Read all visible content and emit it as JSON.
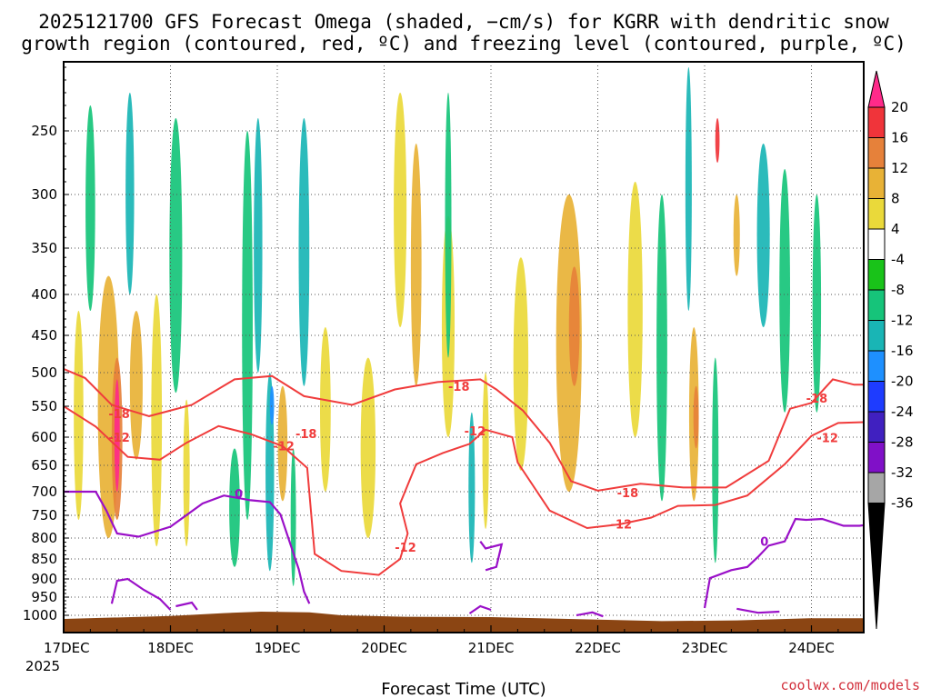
{
  "chart_data": {
    "type": "heatmap",
    "title_line1": "2025121700 GFS Forecast Omega (shaded, −cm/s) for KGRR with dendritic snow",
    "title_line2": "growth region (contoured, red, ºC) and freezing level (contoured, purple, ºC)",
    "xlabel": "Forecast Time (UTC)",
    "credit": "coolwx.com/models",
    "x_ticks": [
      "17DEC",
      "18DEC",
      "19DEC",
      "20DEC",
      "21DEC",
      "22DEC",
      "23DEC",
      "24DEC"
    ],
    "x_year": "2025",
    "xlim_days": [
      0,
      7.6
    ],
    "y_ticks": [
      "250",
      "300",
      "350",
      "400",
      "450",
      "500",
      "550",
      "600",
      "650",
      "700",
      "750",
      "800",
      "850",
      "900",
      "950",
      "1000"
    ],
    "y_tick_values": [
      250,
      300,
      350,
      400,
      450,
      500,
      550,
      600,
      650,
      700,
      750,
      800,
      850,
      900,
      950,
      1000
    ],
    "ylim_hpa": [
      200,
      1025
    ],
    "colorbar": {
      "labels": [
        "20",
        "16",
        "12",
        "8",
        "4",
        "-4",
        "-8",
        "-12",
        "-16",
        "-20",
        "-24",
        "-28",
        "-32",
        "-36"
      ],
      "colors": [
        "#ff2a8a",
        "#f0343a",
        "#e6813a",
        "#e8b236",
        "#ead93a",
        "#ffffff",
        "#19c319",
        "#16c47a",
        "#19b5b5",
        "#1e90ff",
        "#1e3cff",
        "#4020c0",
        "#8010c8",
        "#a6a6a6",
        "#000000"
      ]
    },
    "terrain_color": "#8b4513",
    "contour_labels": [
      {
        "text": "-18",
        "day": 0.52,
        "hpa": 562
      },
      {
        "text": "-12",
        "day": 0.52,
        "hpa": 600
      },
      {
        "text": "-18",
        "day": 2.27,
        "hpa": 594
      },
      {
        "text": "-12",
        "day": 2.06,
        "hpa": 615
      },
      {
        "text": "-12",
        "day": 3.2,
        "hpa": 822
      },
      {
        "text": "-18",
        "day": 3.7,
        "hpa": 520
      },
      {
        "text": "-12",
        "day": 3.85,
        "hpa": 590
      },
      {
        "text": "-18",
        "day": 5.28,
        "hpa": 702
      },
      {
        "text": "-12",
        "day": 5.22,
        "hpa": 769
      },
      {
        "text": "-18",
        "day": 7.05,
        "hpa": 538
      },
      {
        "text": "-12",
        "day": 7.15,
        "hpa": 601
      },
      {
        "text": "0",
        "day": 1.64,
        "hpa": 704
      },
      {
        "text": "0",
        "day": 6.56,
        "hpa": 808
      }
    ],
    "dgz_upper_minus18": [
      [
        0,
        495
      ],
      [
        0.2,
        508
      ],
      [
        0.45,
        548
      ],
      [
        0.8,
        566
      ],
      [
        1.2,
        548
      ],
      [
        1.6,
        510
      ],
      [
        1.95,
        505
      ],
      [
        2.25,
        535
      ],
      [
        2.7,
        548
      ],
      [
        3.1,
        525
      ],
      [
        3.5,
        514
      ],
      [
        3.9,
        510
      ],
      [
        4.05,
        525
      ],
      [
        4.3,
        557
      ],
      [
        4.55,
        610
      ],
      [
        4.75,
        680
      ],
      [
        5.0,
        698
      ],
      [
        5.4,
        685
      ],
      [
        5.8,
        692
      ],
      [
        6.2,
        692
      ],
      [
        6.6,
        642
      ],
      [
        6.8,
        554
      ],
      [
        7.0,
        545
      ],
      [
        7.2,
        510
      ],
      [
        7.4,
        518
      ],
      [
        7.6,
        518
      ]
    ],
    "dgz_lower_minus12": [
      [
        0,
        550
      ],
      [
        0.3,
        583
      ],
      [
        0.6,
        635
      ],
      [
        0.9,
        640
      ],
      [
        1.15,
        610
      ],
      [
        1.45,
        582
      ],
      [
        1.75,
        595
      ],
      [
        2.05,
        616
      ],
      [
        2.28,
        655
      ],
      [
        2.35,
        838
      ],
      [
        2.6,
        880
      ],
      [
        2.95,
        890
      ],
      [
        3.15,
        850
      ],
      [
        3.22,
        790
      ],
      [
        3.15,
        725
      ],
      [
        3.3,
        648
      ],
      [
        3.55,
        628
      ],
      [
        3.8,
        612
      ],
      [
        3.95,
        588
      ],
      [
        4.2,
        600
      ],
      [
        4.25,
        645
      ],
      [
        4.55,
        740
      ],
      [
        4.9,
        778
      ],
      [
        5.2,
        770
      ],
      [
        5.5,
        755
      ],
      [
        5.75,
        730
      ],
      [
        6.1,
        728
      ],
      [
        6.4,
        708
      ],
      [
        6.75,
        648
      ],
      [
        7.0,
        598
      ],
      [
        7.25,
        577
      ],
      [
        7.6,
        575
      ]
    ],
    "freezing_level_0c": [
      [
        [
          0.0,
          700
        ],
        [
          0.3,
          700
        ],
        [
          0.4,
          740
        ],
        [
          0.5,
          790
        ],
        [
          0.7,
          797
        ],
        [
          1.0,
          775
        ],
        [
          1.3,
          725
        ],
        [
          1.5,
          708
        ],
        [
          1.75,
          718
        ],
        [
          1.93,
          722
        ],
        [
          2.03,
          748
        ],
        [
          2.2,
          875
        ],
        [
          2.25,
          935
        ],
        [
          2.3,
          968
        ]
      ],
      [
        [
          0.45,
          968
        ],
        [
          0.5,
          905
        ],
        [
          0.6,
          900
        ],
        [
          0.75,
          930
        ],
        [
          0.9,
          955
        ],
        [
          1.0,
          985
        ]
      ],
      [
        [
          1.05,
          975
        ],
        [
          1.2,
          965
        ],
        [
          1.25,
          985
        ]
      ],
      [
        [
          3.8,
          995
        ],
        [
          3.9,
          975
        ],
        [
          4.0,
          985
        ]
      ],
      [
        [
          3.9,
          808
        ],
        [
          3.95,
          825
        ],
        [
          4.1,
          815
        ],
        [
          4.05,
          870
        ],
        [
          3.95,
          878
        ]
      ],
      [
        [
          4.8,
          1000
        ],
        [
          4.95,
          992
        ],
        [
          5.05,
          1003
        ]
      ],
      [
        [
          6.0,
          980
        ],
        [
          6.05,
          898
        ],
        [
          6.25,
          878
        ],
        [
          6.4,
          870
        ],
        [
          6.5,
          845
        ],
        [
          6.6,
          818
        ],
        [
          6.75,
          808
        ],
        [
          6.85,
          758
        ],
        [
          6.95,
          760
        ],
        [
          7.1,
          758
        ],
        [
          7.3,
          773
        ],
        [
          7.45,
          773
        ],
        [
          7.6,
          768
        ]
      ],
      [
        [
          6.3,
          982
        ],
        [
          6.5,
          993
        ],
        [
          6.7,
          990
        ]
      ]
    ],
    "shading_blobs": [
      {
        "day": 0.14,
        "hpa": 660,
        "width": 0.09,
        "top": 420,
        "bottom": 760,
        "value": 4
      },
      {
        "day": 0.42,
        "hpa": 560,
        "width": 0.2,
        "top": 380,
        "bottom": 800,
        "value": 8
      },
      {
        "day": 0.5,
        "hpa": 590,
        "width": 0.1,
        "top": 480,
        "bottom": 760,
        "value": 12
      },
      {
        "day": 0.5,
        "hpa": 600,
        "width": 0.05,
        "top": 510,
        "bottom": 700,
        "value": 20
      },
      {
        "day": 0.68,
        "hpa": 530,
        "width": 0.12,
        "top": 420,
        "bottom": 640,
        "value": 8
      },
      {
        "day": 0.87,
        "hpa": 560,
        "width": 0.1,
        "top": 400,
        "bottom": 820,
        "value": 4
      },
      {
        "day": 0.25,
        "hpa": 320,
        "width": 0.09,
        "top": 230,
        "bottom": 420,
        "value": -8
      },
      {
        "day": 0.62,
        "hpa": 300,
        "width": 0.08,
        "top": 220,
        "bottom": 400,
        "value": -12
      },
      {
        "day": 1.05,
        "hpa": 380,
        "width": 0.12,
        "top": 240,
        "bottom": 530,
        "value": -8
      },
      {
        "day": 1.15,
        "hpa": 700,
        "width": 0.06,
        "top": 540,
        "bottom": 820,
        "value": 4
      },
      {
        "day": 1.6,
        "hpa": 770,
        "width": 0.1,
        "top": 620,
        "bottom": 870,
        "value": -8
      },
      {
        "day": 1.72,
        "hpa": 500,
        "width": 0.1,
        "top": 250,
        "bottom": 760,
        "value": -8
      },
      {
        "day": 1.82,
        "hpa": 360,
        "width": 0.08,
        "top": 240,
        "bottom": 500,
        "value": -12
      },
      {
        "day": 1.93,
        "hpa": 720,
        "width": 0.08,
        "top": 500,
        "bottom": 880,
        "value": -12
      },
      {
        "day": 1.95,
        "hpa": 540,
        "width": 0.04,
        "top": 520,
        "bottom": 580,
        "value": -16
      },
      {
        "day": 2.05,
        "hpa": 560,
        "width": 0.09,
        "top": 520,
        "bottom": 720,
        "value": 8
      },
      {
        "day": 2.15,
        "hpa": 780,
        "width": 0.05,
        "top": 620,
        "bottom": 920,
        "value": -8
      },
      {
        "day": 2.25,
        "hpa": 360,
        "width": 0.1,
        "top": 240,
        "bottom": 520,
        "value": -12
      },
      {
        "day": 2.45,
        "hpa": 570,
        "width": 0.1,
        "top": 440,
        "bottom": 700,
        "value": 4
      },
      {
        "day": 2.85,
        "hpa": 620,
        "width": 0.14,
        "top": 480,
        "bottom": 800,
        "value": 4
      },
      {
        "day": 3.15,
        "hpa": 300,
        "width": 0.12,
        "top": 220,
        "bottom": 440,
        "value": 4
      },
      {
        "day": 3.3,
        "hpa": 340,
        "width": 0.1,
        "top": 260,
        "bottom": 520,
        "value": 8
      },
      {
        "day": 3.6,
        "hpa": 440,
        "width": 0.12,
        "top": 320,
        "bottom": 600,
        "value": 4
      },
      {
        "day": 3.6,
        "hpa": 300,
        "width": 0.06,
        "top": 220,
        "bottom": 480,
        "value": -8
      },
      {
        "day": 3.82,
        "hpa": 700,
        "width": 0.06,
        "top": 560,
        "bottom": 860,
        "value": -12
      },
      {
        "day": 3.95,
        "hpa": 640,
        "width": 0.06,
        "top": 500,
        "bottom": 780,
        "value": 4
      },
      {
        "day": 4.28,
        "hpa": 460,
        "width": 0.14,
        "top": 360,
        "bottom": 660,
        "value": 4
      },
      {
        "day": 4.73,
        "hpa": 470,
        "width": 0.24,
        "top": 300,
        "bottom": 700,
        "value": 8
      },
      {
        "day": 4.78,
        "hpa": 440,
        "width": 0.1,
        "top": 370,
        "bottom": 520,
        "value": 12
      },
      {
        "day": 5.35,
        "hpa": 410,
        "width": 0.14,
        "top": 290,
        "bottom": 600,
        "value": 4
      },
      {
        "day": 5.6,
        "hpa": 430,
        "width": 0.1,
        "top": 300,
        "bottom": 720,
        "value": -8
      },
      {
        "day": 5.9,
        "hpa": 530,
        "width": 0.09,
        "top": 440,
        "bottom": 720,
        "value": 8
      },
      {
        "day": 5.92,
        "hpa": 560,
        "width": 0.05,
        "top": 520,
        "bottom": 620,
        "value": 12
      },
      {
        "day": 5.85,
        "hpa": 280,
        "width": 0.06,
        "top": 200,
        "bottom": 420,
        "value": -12
      },
      {
        "day": 6.1,
        "hpa": 600,
        "width": 0.06,
        "top": 480,
        "bottom": 860,
        "value": -8
      },
      {
        "day": 6.12,
        "hpa": 260,
        "width": 0.04,
        "top": 240,
        "bottom": 275,
        "value": 16
      },
      {
        "day": 6.3,
        "hpa": 330,
        "width": 0.06,
        "top": 300,
        "bottom": 380,
        "value": 8
      },
      {
        "day": 6.55,
        "hpa": 320,
        "width": 0.12,
        "top": 260,
        "bottom": 440,
        "value": -12
      },
      {
        "day": 6.75,
        "hpa": 420,
        "width": 0.1,
        "top": 280,
        "bottom": 560,
        "value": -8
      },
      {
        "day": 7.05,
        "hpa": 380,
        "width": 0.08,
        "top": 300,
        "bottom": 560,
        "value": -8
      },
      {
        "day": 7.55,
        "hpa": 420,
        "width": 0.05,
        "top": 360,
        "bottom": 440,
        "value": 4
      }
    ]
  }
}
